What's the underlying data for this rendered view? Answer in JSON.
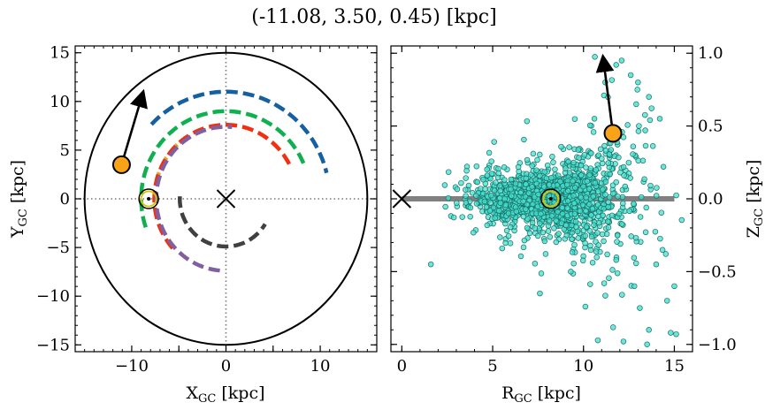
{
  "title": "(-11.08, 3.50, 0.45) [kpc]",
  "chart_data": [
    {
      "type": "scatter",
      "panel": "left",
      "xlabel": "X",
      "xlabel_sub": "GC",
      "xlabel_unit": " [kpc]",
      "ylabel": "Y",
      "ylabel_sub": "GC",
      "ylabel_unit": " [kpc]",
      "xlim": [
        -16,
        16
      ],
      "ylim": [
        -15.7,
        15.7
      ],
      "xticks": [
        -10,
        -5,
        0,
        5,
        10
      ],
      "yticks": [
        -15,
        -10,
        -5,
        0,
        5,
        10,
        15
      ],
      "xticklabels": [
        "−10",
        "",
        "0",
        "",
        "10"
      ],
      "yticklabels": [
        "−15",
        "−10",
        "−5",
        "0",
        "5",
        "10",
        "15"
      ],
      "boundary_circle_radius": 15,
      "galactic_center": [
        0,
        0
      ],
      "sun": [
        -8.2,
        0
      ],
      "object": [
        -11.08,
        3.5
      ],
      "velocity_arrow_end": [
        -8.9,
        10.6
      ],
      "spiral_arms": [
        {
          "color": "#1460a0",
          "r": 11.0,
          "theta_start": 136,
          "theta_end": 14
        },
        {
          "color": "#10b050",
          "r": 9.0,
          "theta_start": 199,
          "theta_end": 23
        },
        {
          "color": "#f0a020",
          "r": 7.6,
          "theta_start": 168,
          "theta_end": 126
        },
        {
          "color": "#f03010",
          "r": 7.6,
          "theta_start": 222,
          "theta_end": 27
        },
        {
          "color": "#8060a0",
          "r": 7.4,
          "theta_start": 265,
          "theta_end": 85
        },
        {
          "color": "#404040",
          "r": 4.9,
          "theta_start": 177,
          "theta_end": 328
        }
      ]
    },
    {
      "type": "scatter",
      "panel": "right",
      "xlabel": "R",
      "xlabel_sub": "GC",
      "xlabel_unit": " [kpc]",
      "ylabel": "Z",
      "ylabel_sub": "GC",
      "ylabel_unit": " [kpc]",
      "xlim": [
        -0.6,
        16
      ],
      "ylim": [
        -1.05,
        1.05
      ],
      "xticks": [
        0,
        5,
        10,
        15
      ],
      "yticks": [
        -1.0,
        -0.5,
        0.0,
        0.5,
        1.0
      ],
      "xticklabels": [
        "0",
        "5",
        "10",
        "15"
      ],
      "yticklabels": [
        "−1.0",
        "−0.5",
        "0.0",
        "0.5",
        "1.0"
      ],
      "disk_line": {
        "x": [
          0,
          15
        ],
        "y": [
          0,
          0
        ]
      },
      "galactic_center": [
        0,
        0
      ],
      "sun": [
        8.2,
        0
      ],
      "object": [
        11.62,
        0.45
      ],
      "velocity_arrow_end": [
        11.1,
        0.95
      ],
      "star_cloud": {
        "center_r": 8.2,
        "spread_r": 2.2,
        "spread_z": 0.09,
        "count": 1500
      },
      "outlier_stars": [
        [
          11.8,
          0.92
        ],
        [
          12.1,
          0.95
        ],
        [
          12.6,
          0.85
        ],
        [
          13.0,
          0.8
        ],
        [
          13.6,
          0.7
        ],
        [
          11.2,
          0.8
        ],
        [
          12.9,
          0.65
        ],
        [
          14.2,
          0.55
        ],
        [
          13.4,
          0.47
        ],
        [
          10.6,
          0.55
        ],
        [
          12.8,
          -0.6
        ],
        [
          13.1,
          -0.75
        ],
        [
          13.6,
          -0.9
        ],
        [
          14.8,
          -0.92
        ],
        [
          15.1,
          -0.93
        ],
        [
          14.6,
          -0.7
        ],
        [
          12.2,
          -0.98
        ],
        [
          13.5,
          -1.0
        ],
        [
          11.8,
          -0.42
        ],
        [
          1.6,
          -0.45
        ],
        [
          9.3,
          -0.5
        ],
        [
          7.6,
          -0.65
        ],
        [
          15.0,
          -0.6
        ],
        [
          14.0,
          -0.45
        ],
        [
          14.4,
          0.22
        ]
      ]
    }
  ],
  "colors": {
    "object": "#f8a318",
    "scatter_fill": "#45e0cf",
    "scatter_edge": "#1b6f67",
    "sun_ring": "#d8c400",
    "disk_line": "#808080"
  }
}
